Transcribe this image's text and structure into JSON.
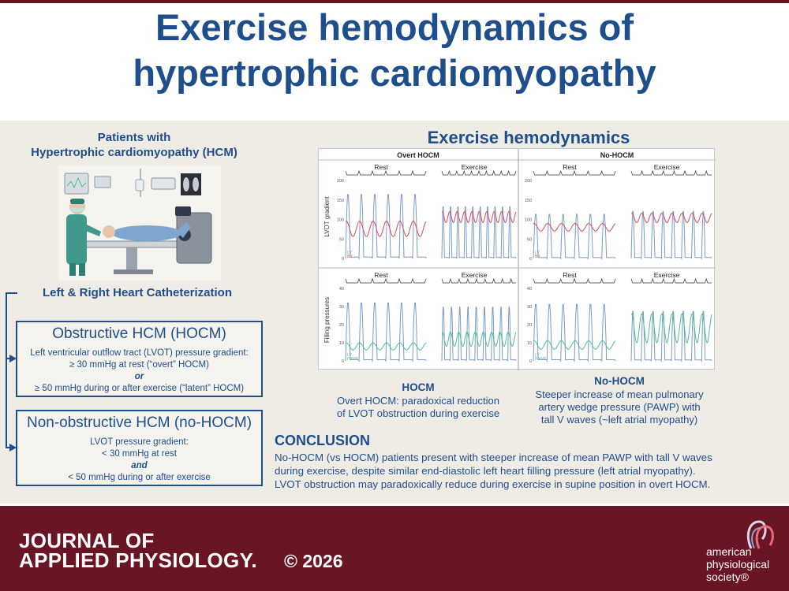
{
  "title": [
    "Exercise hemodynamics of",
    "hypertrophic cardiomyopathy"
  ],
  "left": {
    "patients_title": [
      "Patients with",
      "Hypertrophic cardiomyopathy (HCM)"
    ],
    "catheterization": "Left & Right Heart Catheterization",
    "hocm_box": {
      "title": "Obstructive HCM (HOCM)",
      "lines": [
        "Left ventricular outflow tract (LVOT) pressure gradient:",
        "≥ 30 mmHg at rest (“overt” HOCM)",
        "or",
        "≥ 50 mmHg during or after exercise (“latent” HOCM)"
      ]
    },
    "nohocm_box": {
      "title": "Non-obstructive HCM (no-HOCM)",
      "lines": [
        "LVOT pressure gradient:",
        "< 30 mmHg at rest",
        "and",
        "< 50 mmHg during or after exercise"
      ]
    }
  },
  "right": {
    "heading": "Exercise hemodynamics",
    "figure": {
      "group_labels": [
        "Overt HOCM",
        "No-HOCM"
      ],
      "rest_label": "Rest",
      "exercise_label": "Exercise",
      "row_labels": [
        "LVOT gradient",
        "Filling pressures"
      ],
      "ticks_top": [
        "200",
        "150",
        "100",
        "50",
        "0"
      ],
      "ticks_bottom": [
        "40",
        "30",
        "20",
        "10",
        "0"
      ],
      "legend_top": [
        "LV",
        "BP"
      ],
      "legend_bottom": [
        "LV",
        "PAWP"
      ],
      "colors": {
        "lv": "#7a9cc6",
        "bp": "#e04a5a",
        "pawp": "#4fbf8f"
      }
    },
    "captions": {
      "hocm": {
        "title": "HOCM",
        "lines": [
          "Overt HOCM: paradoxical reduction",
          "of LVOT obstruction during exercise"
        ]
      },
      "nohocm": {
        "title": "No-HOCM",
        "lines": [
          "Steeper increase of mean pulmonary",
          "artery wedge pressure (PAWP) with",
          "tall V waves (~left atrial myopathy)"
        ]
      }
    },
    "conclusion": {
      "title": "CONCLUSION",
      "lines": [
        "No-HOCM (vs HOCM) patients present with steeper increase of mean PAWP with tall V waves",
        "during exercise, despite similar end-diastolic left heart filling pressure (left atrial myopathy).",
        "LVOT obstruction may paradoxically reduce during exercise in supine position in overt HOCM."
      ]
    }
  },
  "footer": {
    "journal": [
      "JOURNAL OF",
      "APPLIED PHYSIOLOGY."
    ],
    "copyright": "© 2026",
    "society": [
      "american",
      "physiological",
      "society®"
    ]
  },
  "colors": {
    "navy": "#1f4e8c",
    "maroon": "#691524",
    "panel": "#eeece4"
  }
}
